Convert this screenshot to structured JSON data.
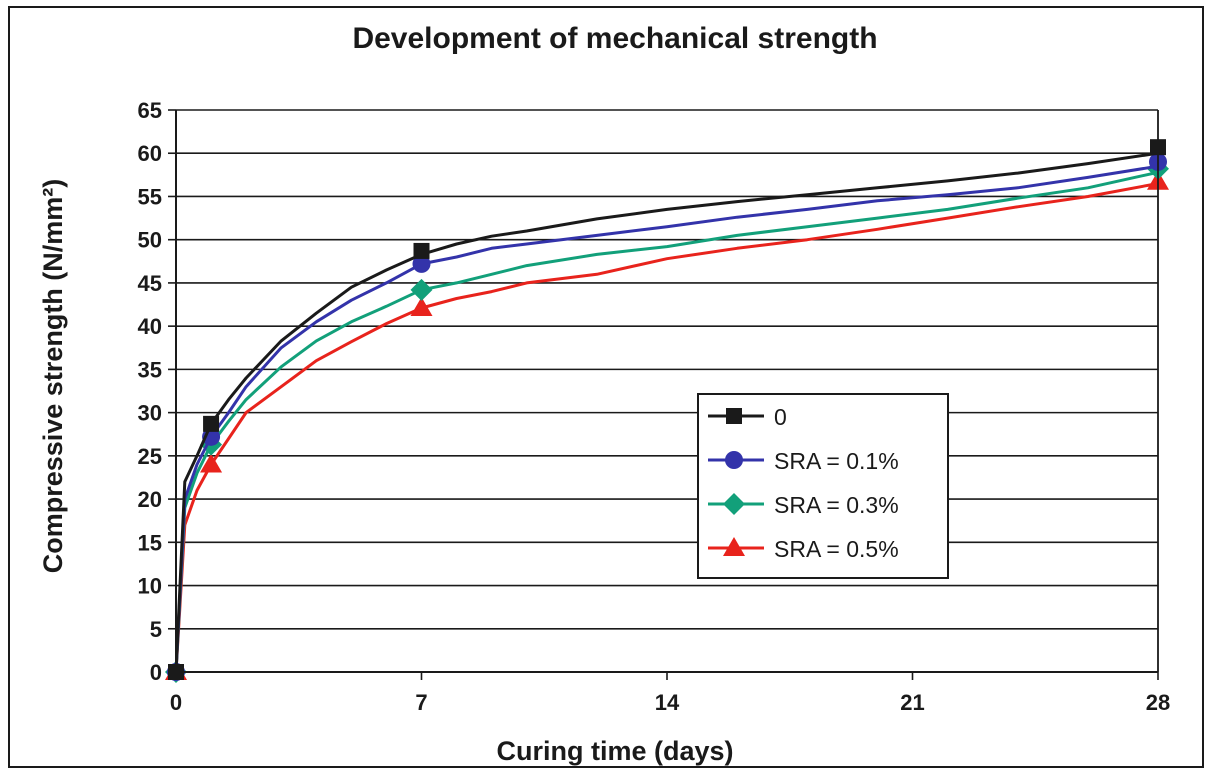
{
  "chart_data": {
    "type": "line",
    "title": "Development of mechanical strength",
    "xlabel": "Curing time (days)",
    "ylabel": "Compressive strength (N/mm²)",
    "xlim": [
      0,
      28
    ],
    "ylim": [
      0,
      65
    ],
    "xticks": [
      0,
      7,
      14,
      21,
      28
    ],
    "yticks": [
      0,
      5,
      10,
      15,
      20,
      25,
      30,
      35,
      40,
      45,
      50,
      55,
      60,
      65
    ],
    "grid": "horizontal",
    "legend_position": "right",
    "series": [
      {
        "name": "0",
        "color": "#1a1a1a",
        "marker": "square",
        "points": [
          [
            0,
            0
          ],
          [
            1,
            28.7
          ],
          [
            7,
            48.7
          ],
          [
            28,
            60.7
          ]
        ],
        "curve": [
          [
            0,
            0
          ],
          [
            0.25,
            22
          ],
          [
            0.6,
            25
          ],
          [
            1,
            28.7
          ],
          [
            1.5,
            31.5
          ],
          [
            2,
            34
          ],
          [
            3,
            38.3
          ],
          [
            4,
            41.5
          ],
          [
            5,
            44.5
          ],
          [
            6,
            46.5
          ],
          [
            7,
            48.3
          ],
          [
            8,
            49.5
          ],
          [
            9,
            50.4
          ],
          [
            10,
            51
          ],
          [
            12,
            52.4
          ],
          [
            14,
            53.5
          ],
          [
            16,
            54.4
          ],
          [
            18,
            55.2
          ],
          [
            20,
            56
          ],
          [
            22,
            56.8
          ],
          [
            24,
            57.7
          ],
          [
            26,
            58.8
          ],
          [
            28,
            60
          ]
        ]
      },
      {
        "name": "SRA = 0.1%",
        "color": "#3333aa",
        "marker": "circle",
        "points": [
          [
            0,
            0
          ],
          [
            1,
            27.2
          ],
          [
            7,
            47.2
          ],
          [
            28,
            59
          ]
        ],
        "curve": [
          [
            0,
            0
          ],
          [
            0.25,
            20
          ],
          [
            0.6,
            24
          ],
          [
            1,
            27.2
          ],
          [
            1.5,
            30
          ],
          [
            2,
            33
          ],
          [
            3,
            37.5
          ],
          [
            4,
            40.5
          ],
          [
            5,
            43
          ],
          [
            6,
            45
          ],
          [
            7,
            47.2
          ],
          [
            8,
            48
          ],
          [
            9,
            49
          ],
          [
            10,
            49.5
          ],
          [
            12,
            50.5
          ],
          [
            14,
            51.5
          ],
          [
            16,
            52.6
          ],
          [
            18,
            53.5
          ],
          [
            20,
            54.5
          ],
          [
            22,
            55.2
          ],
          [
            24,
            56
          ],
          [
            26,
            57.2
          ],
          [
            28,
            58.5
          ]
        ]
      },
      {
        "name": "SRA = 0.3%",
        "color": "#12a07a",
        "marker": "diamond",
        "points": [
          [
            0,
            0
          ],
          [
            1,
            26.3
          ],
          [
            7,
            44.2
          ],
          [
            28,
            58.2
          ]
        ],
        "curve": [
          [
            0,
            0
          ],
          [
            0.25,
            19
          ],
          [
            0.6,
            23
          ],
          [
            1,
            26.3
          ],
          [
            1.5,
            29
          ],
          [
            2,
            31.5
          ],
          [
            3,
            35.3
          ],
          [
            4,
            38.3
          ],
          [
            5,
            40.5
          ],
          [
            6,
            42.3
          ],
          [
            7,
            44.2
          ],
          [
            8,
            45
          ],
          [
            9,
            46
          ],
          [
            10,
            47
          ],
          [
            12,
            48.3
          ],
          [
            14,
            49.2
          ],
          [
            16,
            50.5
          ],
          [
            18,
            51.5
          ],
          [
            20,
            52.5
          ],
          [
            22,
            53.5
          ],
          [
            24,
            54.8
          ],
          [
            26,
            56
          ],
          [
            28,
            57.8
          ]
        ]
      },
      {
        "name": "SRA = 0.5%",
        "color": "#e8231c",
        "marker": "triangle",
        "points": [
          [
            0,
            0
          ],
          [
            1,
            24
          ],
          [
            7,
            42.1
          ],
          [
            28,
            56.7
          ]
        ],
        "curve": [
          [
            0,
            0
          ],
          [
            0.25,
            17
          ],
          [
            0.6,
            21
          ],
          [
            1,
            24
          ],
          [
            1.5,
            27
          ],
          [
            2,
            30
          ],
          [
            3,
            33
          ],
          [
            4,
            36
          ],
          [
            5,
            38.2
          ],
          [
            6,
            40.3
          ],
          [
            7,
            42.1
          ],
          [
            8,
            43.2
          ],
          [
            9,
            44
          ],
          [
            10,
            45
          ],
          [
            12,
            46
          ],
          [
            14,
            47.8
          ],
          [
            16,
            49
          ],
          [
            18,
            50
          ],
          [
            20,
            51.2
          ],
          [
            22,
            52.5
          ],
          [
            24,
            53.8
          ],
          [
            26,
            55
          ],
          [
            28,
            56.5
          ]
        ]
      }
    ]
  }
}
